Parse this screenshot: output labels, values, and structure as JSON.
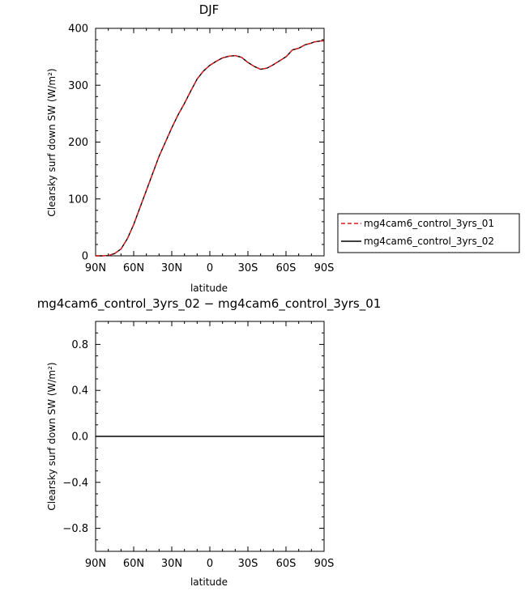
{
  "chart_data": [
    {
      "type": "line",
      "title": "DJF",
      "xlabel": "latitude",
      "ylabel": "Clearsky surf down SW (W/m²)",
      "xlim": [
        90,
        -90
      ],
      "ylim": [
        0,
        400
      ],
      "xticks": [
        "90N",
        "60N",
        "30N",
        "0",
        "30S",
        "60S",
        "90S"
      ],
      "yticks": [
        "0",
        "100",
        "200",
        "300",
        "400"
      ],
      "legend_position": "right",
      "series": [
        {
          "name": "mg4cam6_control_3yrs_01",
          "color": "#e31a1c",
          "dash": "dashed",
          "x": [
            90,
            85,
            80,
            75,
            70,
            65,
            60,
            55,
            50,
            45,
            40,
            35,
            30,
            25,
            20,
            15,
            10,
            5,
            0,
            -5,
            -10,
            -15,
            -20,
            -25,
            -30,
            -35,
            -40,
            -45,
            -50,
            -55,
            -60,
            -63,
            -65,
            -70,
            -75,
            -80,
            -82,
            -85,
            -88,
            -90
          ],
          "y": [
            0,
            0,
            0.5,
            4,
            12,
            30,
            55,
            85,
            115,
            145,
            175,
            200,
            225,
            248,
            268,
            290,
            311,
            325,
            335,
            342,
            348,
            351,
            352,
            349,
            340,
            333,
            328,
            330,
            336,
            343,
            350,
            357,
            362,
            365,
            371,
            374,
            376,
            377,
            378,
            378
          ]
        },
        {
          "name": "mg4cam6_control_3yrs_02",
          "color": "#000000",
          "dash": "solid",
          "x": [
            90,
            85,
            80,
            75,
            70,
            65,
            60,
            55,
            50,
            45,
            40,
            35,
            30,
            25,
            20,
            15,
            10,
            5,
            0,
            -5,
            -10,
            -15,
            -20,
            -25,
            -30,
            -35,
            -40,
            -45,
            -50,
            -55,
            -60,
            -63,
            -65,
            -70,
            -75,
            -80,
            -82,
            -85,
            -88,
            -90
          ],
          "y": [
            0,
            0,
            0.5,
            4,
            12,
            30,
            55,
            85,
            115,
            145,
            175,
            200,
            225,
            248,
            268,
            290,
            311,
            325,
            335,
            342,
            348,
            351,
            352,
            349,
            340,
            333,
            328,
            330,
            336,
            343,
            350,
            357,
            362,
            365,
            371,
            374,
            376,
            377,
            378,
            378
          ]
        }
      ]
    },
    {
      "type": "line",
      "title": "mg4cam6_control_3yrs_02 − mg4cam6_control_3yrs_01",
      "xlabel": "latitude",
      "ylabel": "Clearsky surf down SW (W/m²)",
      "xlim": [
        90,
        -90
      ],
      "ylim": [
        -1,
        1
      ],
      "xticks": [
        "90N",
        "60N",
        "30N",
        "0",
        "30S",
        "60S",
        "90S"
      ],
      "yticks": [
        "−0.8",
        "−0.4",
        "0.0",
        "0.4",
        "0.8"
      ],
      "series": [
        {
          "name": "",
          "color": "#000000",
          "dash": "solid",
          "x": [
            90,
            -90
          ],
          "y": [
            0,
            0
          ]
        }
      ]
    }
  ]
}
